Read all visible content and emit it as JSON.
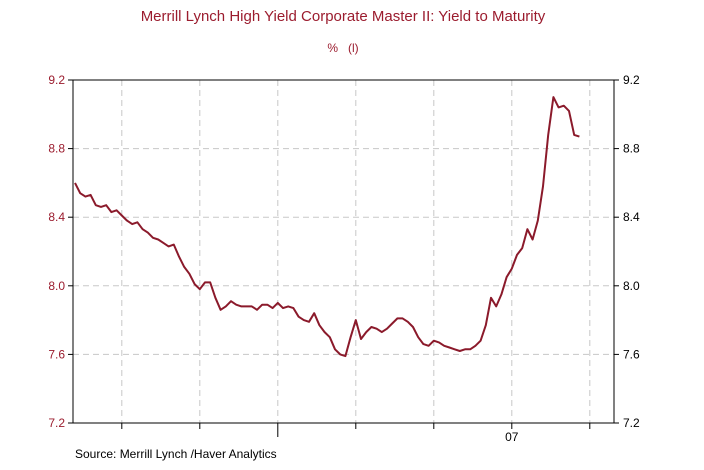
{
  "chart_data": {
    "type": "line",
    "title": "Merrill Lynch High Yield Corporate Master II: Yield to Maturity",
    "subtitle": "%   (l)",
    "source": "Source:  Merrill Lynch /Haver Analytics",
    "ylim": [
      7.2,
      9.2
    ],
    "yticks": [
      "9.2",
      "8.8",
      "8.4",
      "8.0",
      "7.6",
      "7.2"
    ],
    "ytick_values": [
      9.2,
      8.8,
      8.4,
      8.0,
      7.6,
      7.2
    ],
    "xlim": [
      0,
      100
    ],
    "xtick_label": "07",
    "xtick_label_pos": 84,
    "minor_xticks": [
      9,
      24,
      39,
      54,
      69,
      84,
      99
    ],
    "major_xticks": [
      39
    ],
    "grid": true,
    "series_color": "#8b1a2b",
    "series": [
      {
        "x": [
          0,
          1,
          2,
          3,
          4,
          5,
          6,
          7,
          8,
          9,
          10,
          11,
          12,
          13,
          14,
          15,
          16,
          17,
          18,
          19,
          20,
          21,
          22,
          23,
          24,
          25,
          26,
          27,
          28,
          29,
          30,
          31,
          32,
          33,
          34,
          35,
          36,
          37,
          38,
          39,
          40,
          41,
          42,
          43,
          44,
          45,
          46,
          47,
          48,
          49,
          50,
          51,
          52,
          53,
          54,
          55,
          56,
          57,
          58,
          59,
          60,
          61,
          62,
          63,
          64,
          65,
          66,
          67,
          68,
          69,
          70,
          71,
          72,
          73,
          74,
          75,
          76,
          77,
          78,
          79,
          80,
          81,
          82,
          83,
          84,
          85,
          86,
          87,
          88,
          89,
          90,
          91,
          92,
          93,
          94,
          95,
          96,
          97
        ],
        "y": [
          8.6,
          8.54,
          8.52,
          8.53,
          8.47,
          8.46,
          8.47,
          8.43,
          8.44,
          8.41,
          8.38,
          8.36,
          8.37,
          8.33,
          8.31,
          8.28,
          8.27,
          8.25,
          8.23,
          8.24,
          8.17,
          8.11,
          8.07,
          8.01,
          7.98,
          8.02,
          8.02,
          7.93,
          7.86,
          7.88,
          7.91,
          7.89,
          7.88,
          7.88,
          7.88,
          7.86,
          7.89,
          7.89,
          7.87,
          7.9,
          7.87,
          7.88,
          7.87,
          7.82,
          7.8,
          7.79,
          7.84,
          7.77,
          7.73,
          7.7,
          7.63,
          7.6,
          7.59,
          7.7,
          7.8,
          7.69,
          7.73,
          7.76,
          7.75,
          7.73,
          7.75,
          7.78,
          7.81,
          7.81,
          7.79,
          7.76,
          7.7,
          7.66,
          7.65,
          7.68,
          7.67,
          7.65,
          7.64,
          7.63,
          7.62,
          7.63,
          7.63,
          7.65,
          7.68,
          7.77,
          7.93,
          7.88,
          7.95,
          8.05,
          8.1,
          8.18,
          8.22,
          8.33,
          8.27,
          8.38,
          8.58,
          8.88,
          9.1,
          9.04,
          9.05,
          9.02,
          8.88,
          8.87
        ]
      }
    ]
  }
}
